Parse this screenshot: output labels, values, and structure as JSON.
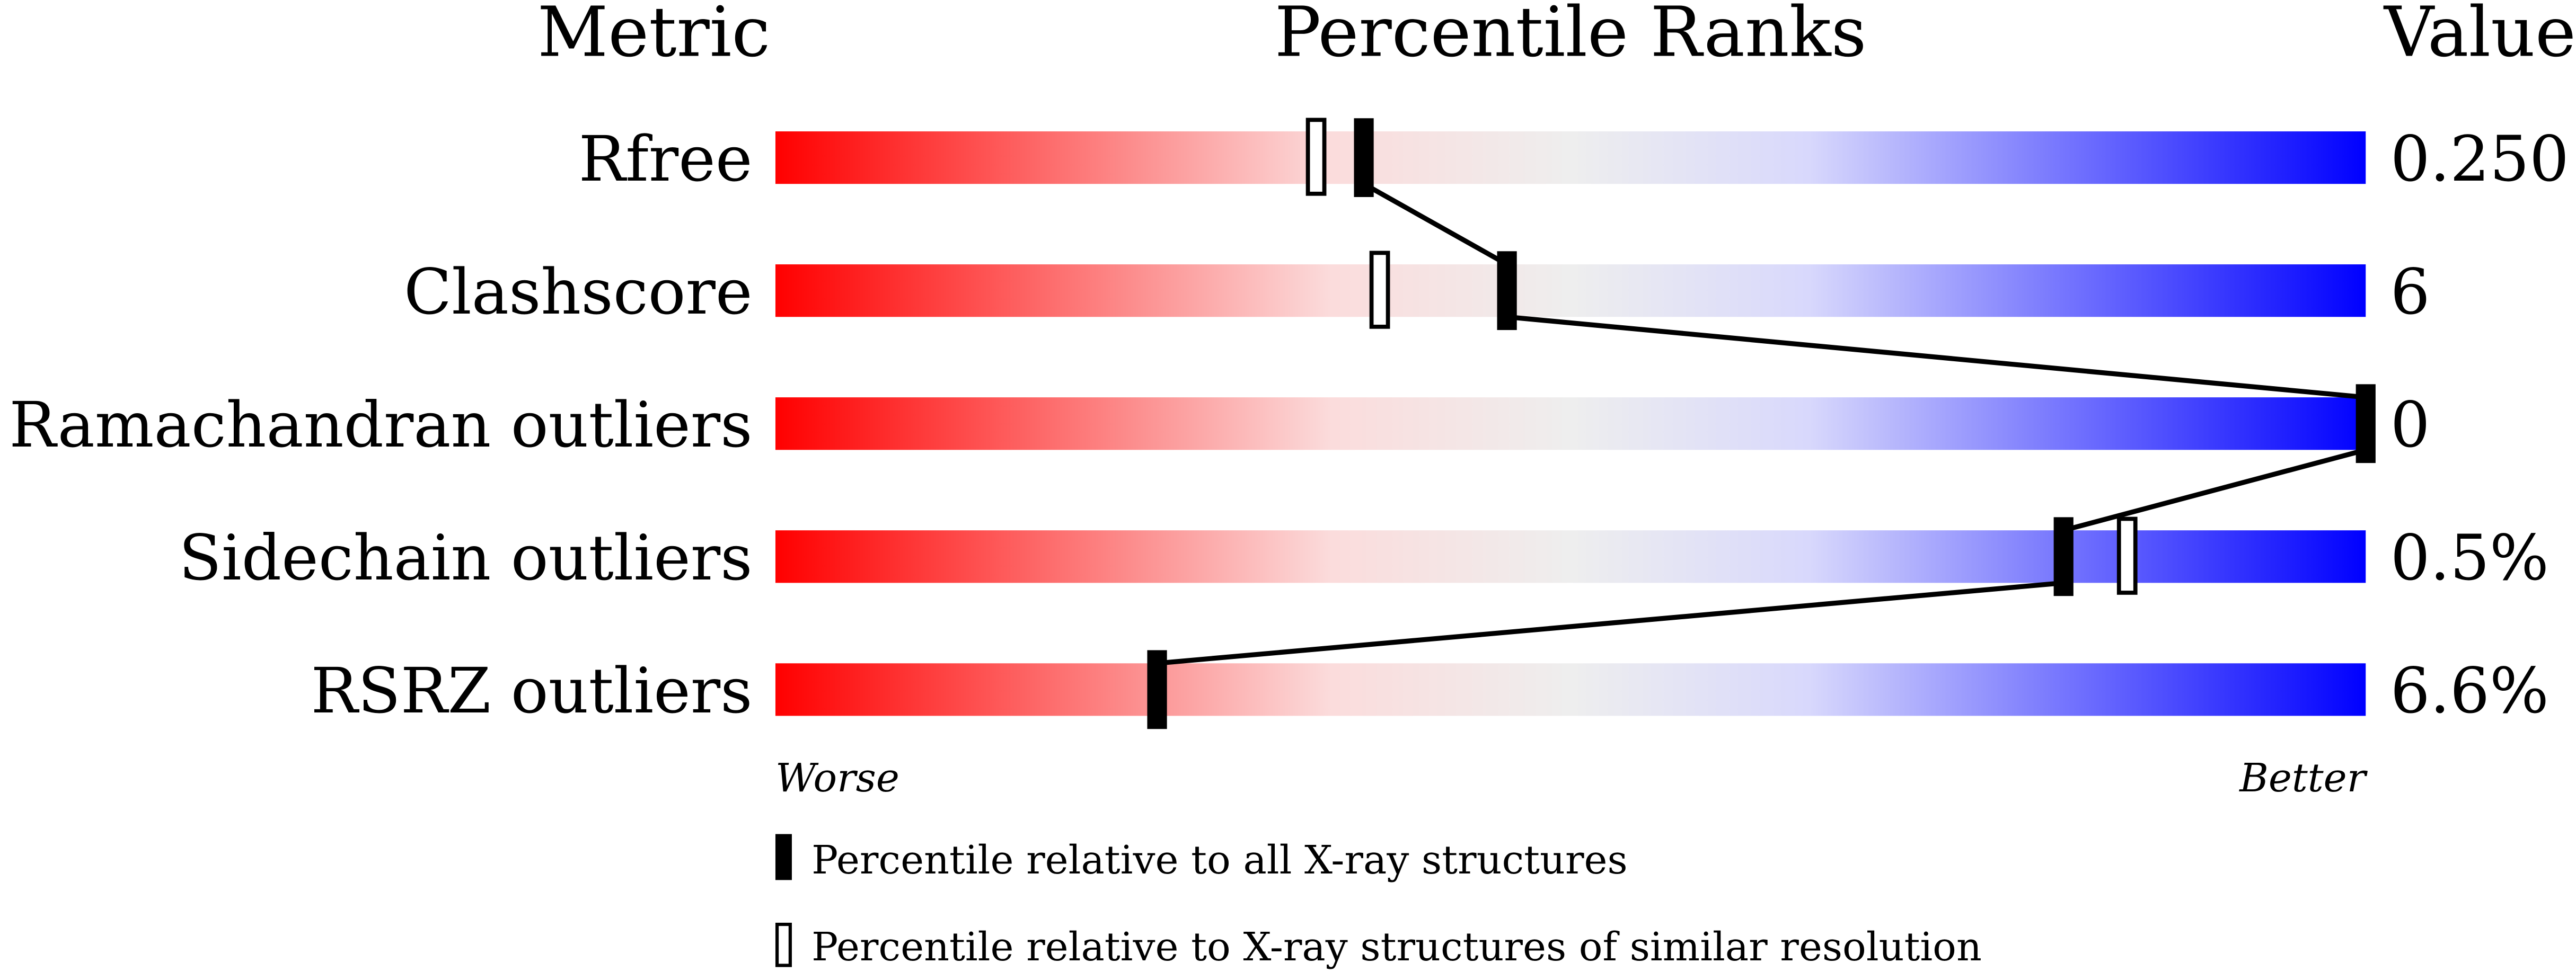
{
  "chart_data": {
    "type": "bar",
    "headers": {
      "metric": "Metric",
      "ranks": "Percentile Ranks",
      "value": "Value"
    },
    "xlim": [
      0,
      100
    ],
    "axis_labels": {
      "left": "Worse",
      "right": "Better"
    },
    "gradient_colors": [
      "#ff0000",
      "#fbdcdc",
      "#eeeeee",
      "#d8d8fc",
      "#0000ff"
    ],
    "metrics": [
      {
        "name": "Rfree",
        "value": "0.250",
        "percentile_all": 37,
        "percentile_similar": 34
      },
      {
        "name": "Clashscore",
        "value": "6",
        "percentile_all": 46,
        "percentile_similar": 38
      },
      {
        "name": "Ramachandran outliers",
        "value": "0",
        "percentile_all": 100,
        "percentile_similar": null
      },
      {
        "name": "Sidechain outliers",
        "value": "0.5%",
        "percentile_all": 81,
        "percentile_similar": 85
      },
      {
        "name": "RSRZ outliers",
        "value": "6.6%",
        "percentile_all": 24,
        "percentile_similar": null
      }
    ],
    "legend": {
      "all": "Percentile relative to all X-ray structures",
      "similar": "Percentile relative to X-ray structures of similar resolution"
    }
  }
}
